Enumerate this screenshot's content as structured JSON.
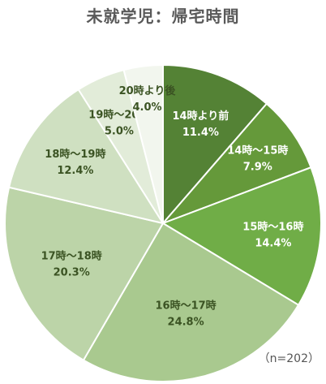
{
  "chart_data": {
    "type": "pie",
    "title": "未就学児：帰宅時間",
    "note": "（n=202）",
    "slices": [
      {
        "label": "14時より前",
        "value": 11.4,
        "display": "11.4%",
        "color": "#548235",
        "text_color": "#ffffff"
      },
      {
        "label": "14時～15時",
        "value": 7.9,
        "display": "7.9%",
        "color": "#65993a",
        "text_color": "#ffffff"
      },
      {
        "label": "15時～16時",
        "value": 14.4,
        "display": "14.4%",
        "color": "#70ad47",
        "text_color": "#ffffff"
      },
      {
        "label": "16時～17時",
        "value": 24.8,
        "display": "24.8%",
        "color": "#a9c98f",
        "text_color": "#3b5323"
      },
      {
        "label": "17時～18時",
        "value": 20.3,
        "display": "20.3%",
        "color": "#bcd4a8",
        "text_color": "#3b5323"
      },
      {
        "label": "18時～19時",
        "value": 12.4,
        "display": "12.4%",
        "color": "#cfe0c1",
        "text_color": "#3b5323"
      },
      {
        "label": "19時～20時",
        "value": 5.0,
        "display": "5.0%",
        "color": "#e2ecd9",
        "text_color": "#3b5323"
      },
      {
        "label": "20時より後",
        "value": 4.0,
        "display": "4.0%",
        "color": "#f2f6ee",
        "text_color": "#3b5323"
      }
    ]
  }
}
